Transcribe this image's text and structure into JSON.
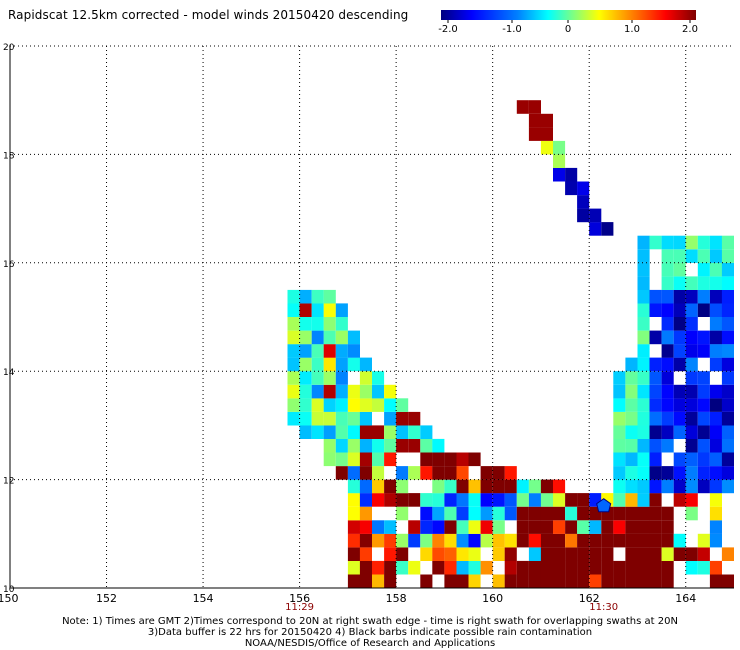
{
  "page": {
    "title": "Rapidscat 12.5km corrected - model winds 20150420 descending"
  },
  "colorbar": {
    "tick_labels": [
      "-2.0",
      "-1.0",
      "0",
      "1.0",
      "2.0"
    ],
    "colors": [
      "#00007f",
      "#0000ff",
      "#0080ff",
      "#00ffff",
      "#80ff80",
      "#ffff00",
      "#ff8000",
      "#ff0000",
      "#7f0000"
    ]
  },
  "chart_data": {
    "type": "heatmap",
    "title": "Rapidscat 12.5km corrected - model winds 20150420 descending",
    "xlim": [
      150,
      165
    ],
    "ylim": [
      10,
      20
    ],
    "x_ticks": [
      150,
      152,
      154,
      156,
      158,
      160,
      162,
      164
    ],
    "y_ticks": [
      10,
      12,
      14,
      16,
      18,
      20
    ],
    "x_tick_labels": [
      "150",
      "152",
      "154",
      "156",
      "158",
      "160",
      "162",
      "164"
    ],
    "y_tick_labels": [
      "10",
      "12",
      "14",
      "16",
      "18",
      "20"
    ],
    "grid": true,
    "time_labels": [
      {
        "x": 156.0,
        "label": "11:29"
      },
      {
        "x": 162.3,
        "label": "11:30"
      }
    ],
    "value_range": [
      -2.0,
      2.0
    ],
    "cell_size_deg": 0.125,
    "regions": [
      {
        "desc": "northwest swath arc",
        "points": [
          [
            155.8,
            15.4
          ],
          [
            156.2,
            14.6
          ],
          [
            156.6,
            13.8
          ],
          [
            157.0,
            13.0
          ],
          [
            157.4,
            12.4
          ],
          [
            157.8,
            12.0
          ],
          [
            158.2,
            11.7
          ],
          [
            158.6,
            11.6
          ]
        ],
        "value_mix": "mostly -0.5..1.0 with reds near 13"
      },
      {
        "desc": "diagonal track",
        "points": [
          [
            160.8,
            18.8
          ],
          [
            161.2,
            18.2
          ],
          [
            161.6,
            17.6
          ],
          [
            162.0,
            17.0
          ],
          [
            162.2,
            16.6
          ]
        ],
        "value_mix": "dark red top, blue below"
      },
      {
        "desc": "east strong negative",
        "points": [
          [
            163.0,
            15.0
          ],
          [
            164.0,
            14.5
          ],
          [
            164.8,
            13.0
          ],
          [
            163.5,
            12.5
          ]
        ],
        "value_mix": "-2.0..-1.0"
      },
      {
        "desc": "south strong positive",
        "points": [
          [
            160.5,
            11.0
          ],
          [
            162.0,
            10.8
          ],
          [
            163.5,
            10.8
          ],
          [
            164.5,
            10.6
          ]
        ],
        "value_mix": "2.0"
      }
    ]
  },
  "notes": {
    "line1": "Note: 1) Times are GMT 2)Times correspond to 20N at right swath edge - time is right swath for overlapping swaths at 20N",
    "line2": "3)Data buffer is 22 hrs for 20150420 4) Black barbs indicate possible rain contamination",
    "line3": "NOAA/NESDIS/Office of Research and Applications"
  }
}
